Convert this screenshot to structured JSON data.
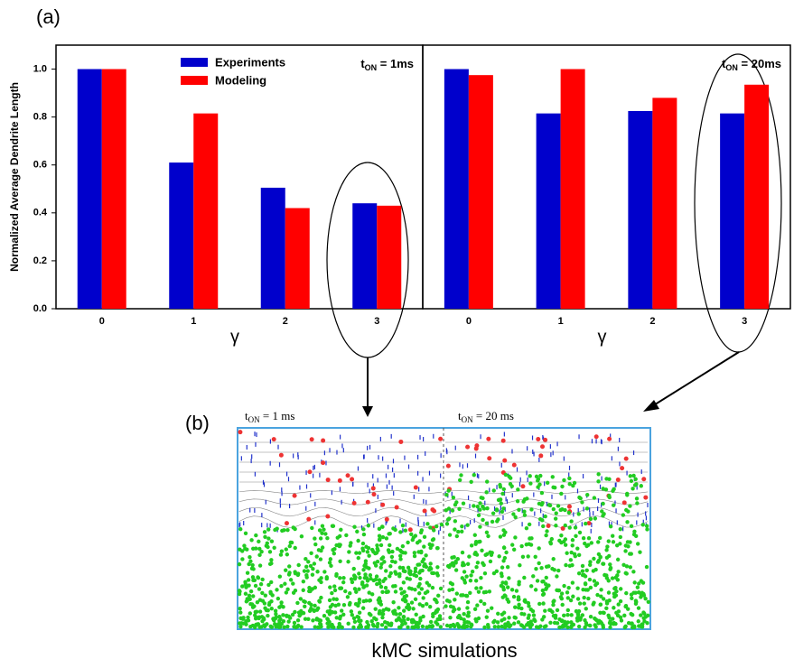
{
  "panel_a_label": "(a)",
  "panel_b_label": "(b)",
  "chart_data": [
    {
      "type": "bar",
      "ylabel": "Normalized Average Dendrite Length",
      "xlabel": "γ",
      "categories": [
        "0",
        "1",
        "2",
        "3"
      ],
      "series": [
        {
          "name": "Experiments",
          "color": "#0000cc",
          "values": [
            1.0,
            0.61,
            0.505,
            0.44
          ]
        },
        {
          "name": "Modeling",
          "color": "#ff0000",
          "values": [
            1.0,
            0.815,
            0.42,
            0.43
          ]
        }
      ],
      "ylim": [
        0,
        1.1
      ],
      "yticks": [
        {
          "value": 0,
          "label": "0.0"
        },
        0.2,
        0.4,
        0.6,
        0.8,
        {
          "value": 1,
          "label": "1.0"
        }
      ],
      "legend": "upper center",
      "annotation": {
        "base": "t",
        "sub": "ON",
        "rest": " = 1ms"
      }
    },
    {
      "type": "bar",
      "xlabel": "γ",
      "categories": [
        "0",
        "1",
        "2",
        "3"
      ],
      "series": [
        {
          "color": "#0000cc",
          "values": [
            1.0,
            0.815,
            0.825,
            0.815
          ]
        },
        {
          "color": "#ff0000",
          "values": [
            0.975,
            1.0,
            0.88,
            0.935
          ]
        }
      ],
      "ylim": [
        0,
        1.1
      ],
      "annotation": {
        "base": "t",
        "sub": "ON",
        "rest": " = 20ms"
      }
    }
  ],
  "simulation": {
    "left_label": {
      "base": "t",
      "sub": "ON",
      "rest": " = 1 ms"
    },
    "right_label": {
      "base": "t",
      "sub": "ON",
      "rest": " = 20 ms"
    },
    "caption": "kMC simulations"
  }
}
